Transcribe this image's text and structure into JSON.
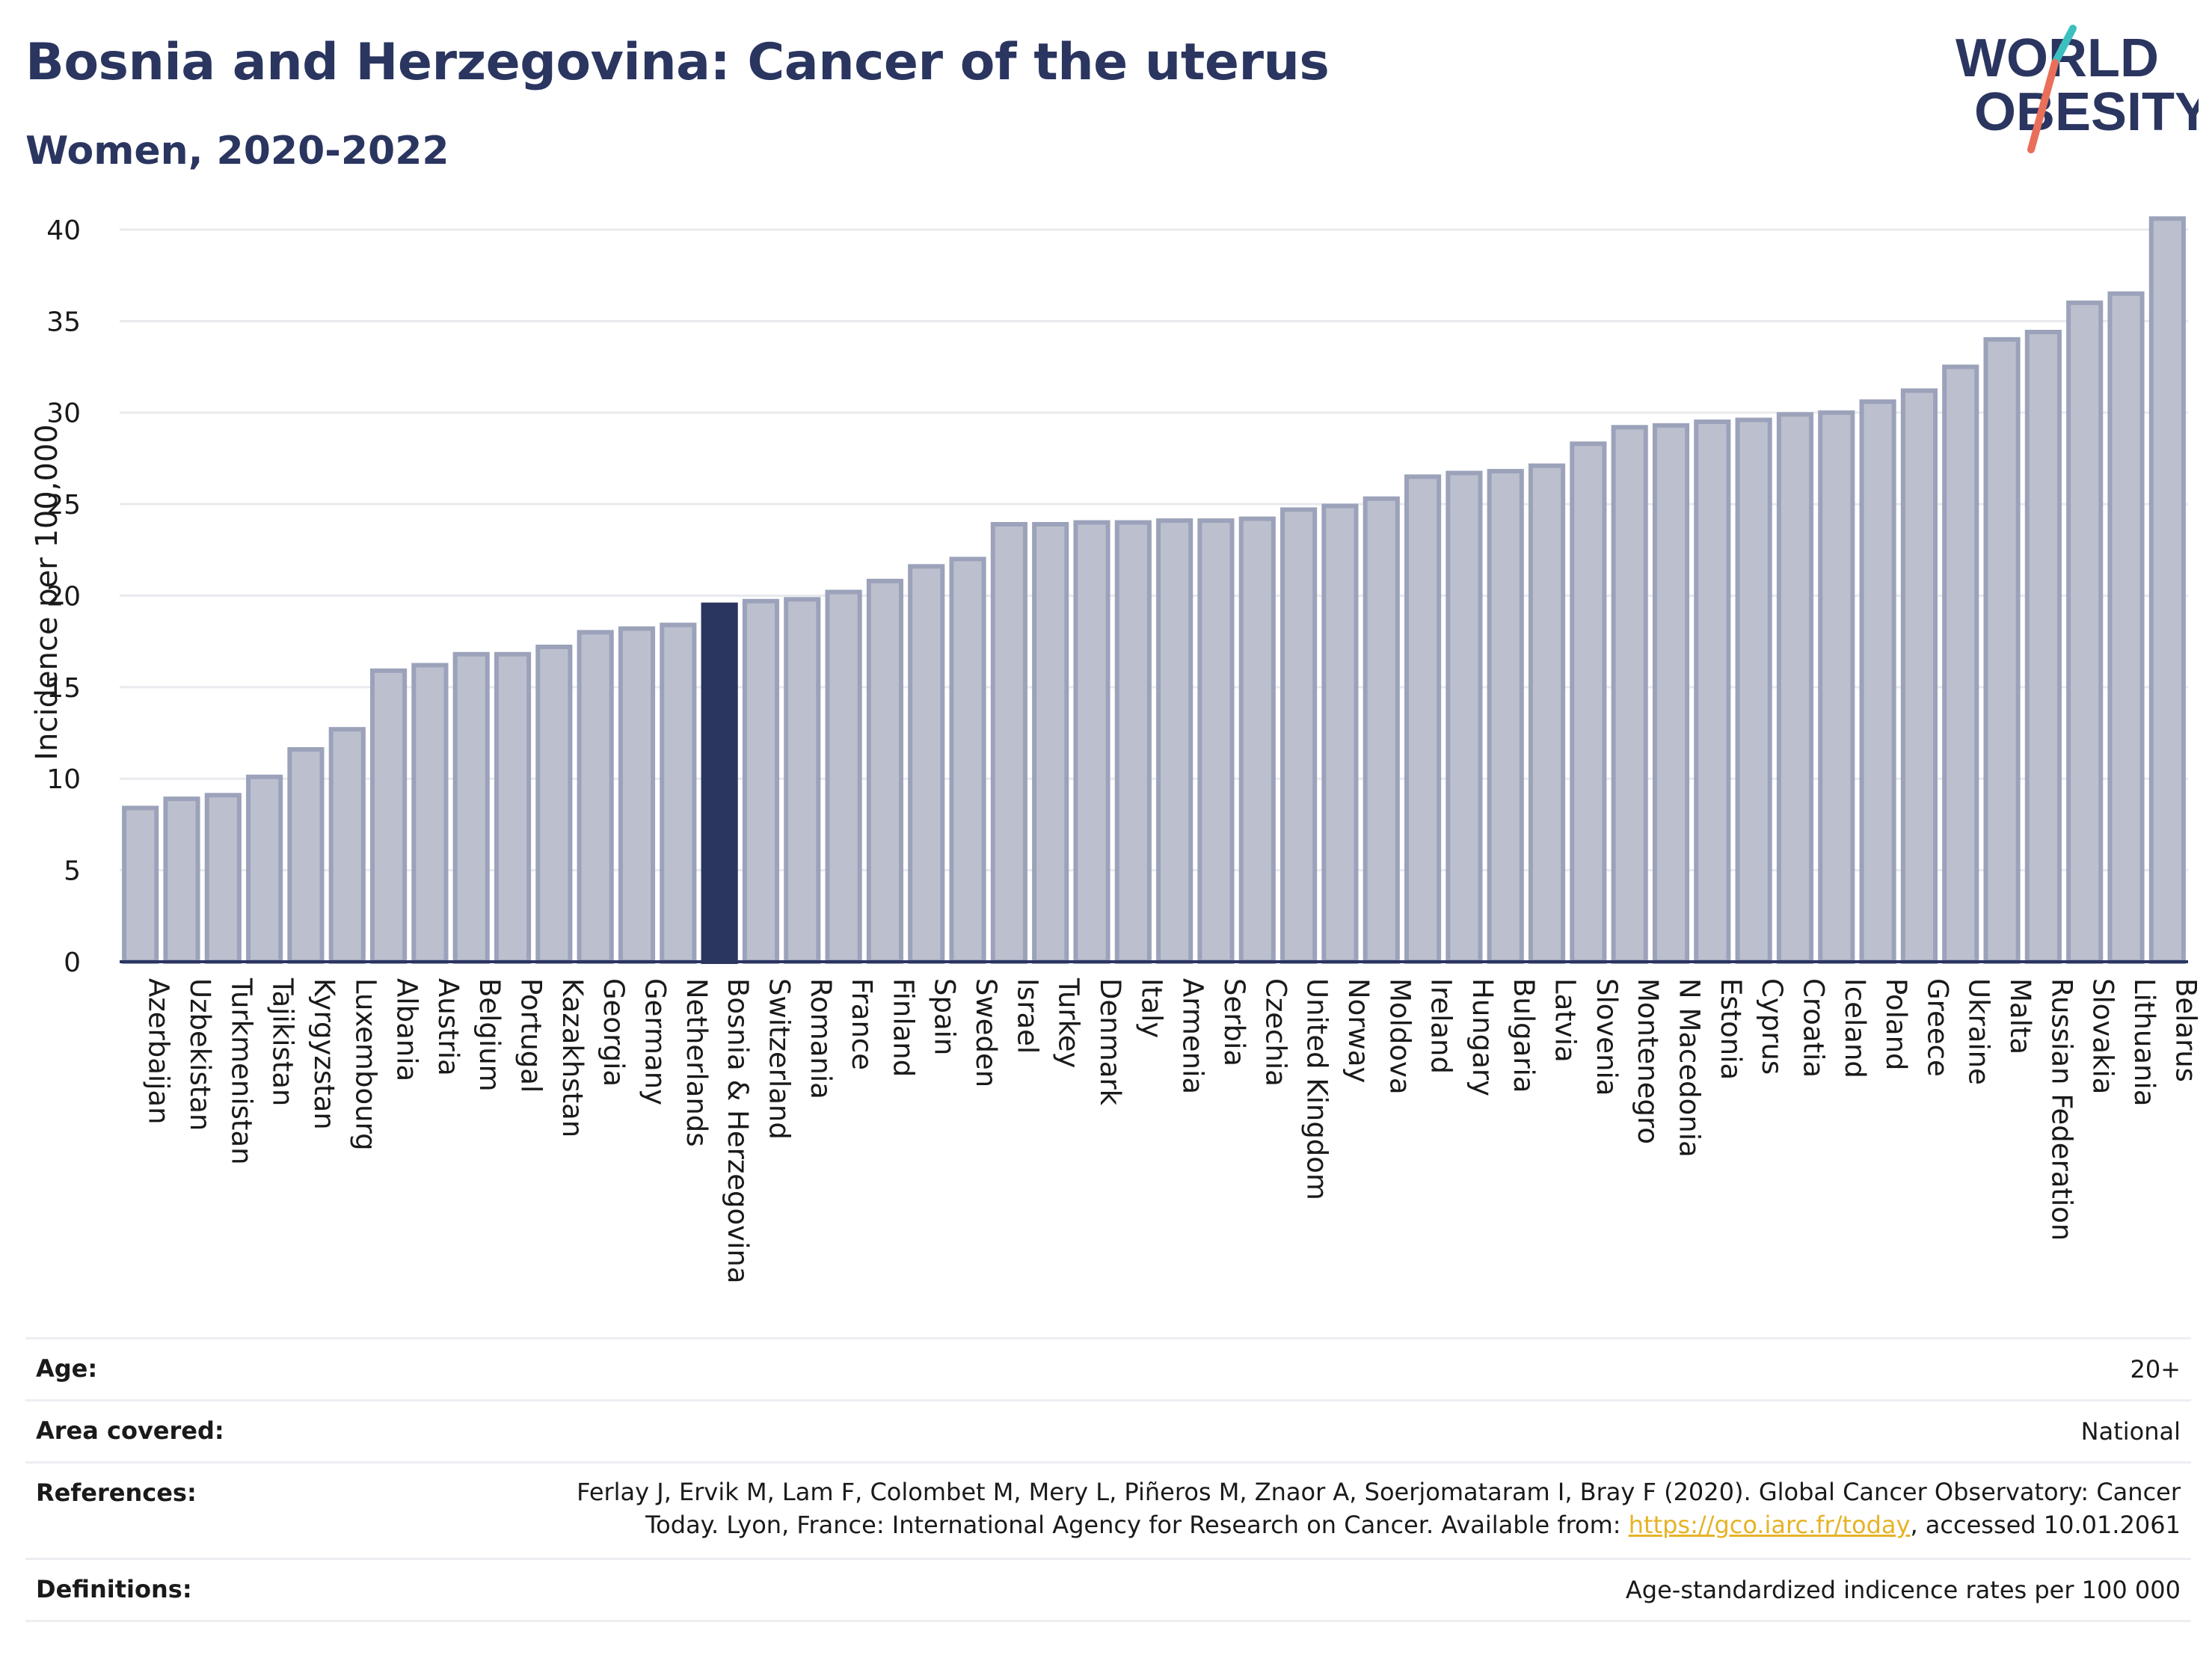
{
  "header": {
    "title": "Bosnia and Herzegovina: Cancer of the uterus",
    "subtitle": "Women, 2020-2022"
  },
  "logo": {
    "line1": "WORLD",
    "line2": "OBESITY",
    "slash_colors": [
      "#3cbfbf",
      "#e96f5a"
    ]
  },
  "chart_data": {
    "type": "bar",
    "ylabel": "Incidence per 100,000",
    "ylim": [
      0,
      42
    ],
    "yticks": [
      0,
      5,
      10,
      15,
      20,
      25,
      30,
      35,
      40
    ],
    "grid": true,
    "highlight": "Bosnia & Herzegovina",
    "colors": {
      "bar": "#bcc0ce",
      "bar_edge": "#9ba2ba",
      "highlight": "#2a3560",
      "axis": "#2a3560",
      "grid": "#e8eaee"
    },
    "categories": [
      "Azerbaijan",
      "Uzbekistan",
      "Turkmenistan",
      "Tajikistan",
      "Kyrgyzstan",
      "Luxembourg",
      "Albania",
      "Austria",
      "Belgium",
      "Portugal",
      "Kazakhstan",
      "Georgia",
      "Germany",
      "Netherlands",
      "Bosnia & Herzegovina",
      "Switzerland",
      "Romania",
      "France",
      "Finland",
      "Spain",
      "Sweden",
      "Israel",
      "Turkey",
      "Denmark",
      "Italy",
      "Armenia",
      "Serbia",
      "Czechia",
      "United Kingdom",
      "Norway",
      "Moldova",
      "Ireland",
      "Hungary",
      "Bulgaria",
      "Latvia",
      "Slovenia",
      "Montenegro",
      "N Macedonia",
      "Estonia",
      "Cyprus",
      "Croatia",
      "Iceland",
      "Poland",
      "Greece",
      "Ukraine",
      "Malta",
      "Russian Federation",
      "Slovakia",
      "Lithuania",
      "Belarus"
    ],
    "values": [
      8.4,
      8.9,
      9.1,
      10.1,
      11.6,
      12.7,
      15.9,
      16.2,
      16.8,
      16.8,
      17.2,
      18.0,
      18.2,
      18.4,
      19.5,
      19.7,
      19.8,
      20.2,
      20.8,
      21.6,
      22.0,
      23.9,
      23.9,
      24.0,
      24.0,
      24.1,
      24.1,
      24.2,
      24.7,
      24.9,
      25.3,
      26.5,
      26.7,
      26.8,
      27.1,
      28.3,
      29.2,
      29.3,
      29.5,
      29.6,
      29.9,
      30.0,
      30.6,
      31.2,
      32.5,
      34.0,
      34.4,
      36.0,
      36.5,
      40.6
    ]
  },
  "meta": {
    "age_label": "Age:",
    "age_value": "20+",
    "area_label": "Area covered:",
    "area_value": "National",
    "references_label": "References:",
    "references_line1": "Ferlay J, Ervik M, Lam F, Colombet M, Mery L, Piñeros M, Znaor A, Soerjomataram I, Bray F (2020). Global Cancer Observatory: Cancer",
    "references_line2_pre": "Today. Lyon, France: International Agency for Research on Cancer. Available from: ",
    "references_link": "https://gco.iarc.fr/today",
    "references_line2_post": ", accessed 10.01.2061",
    "definitions_label": "Definitions:",
    "definitions_value": "Age-standardized indicence rates per 100 000"
  }
}
